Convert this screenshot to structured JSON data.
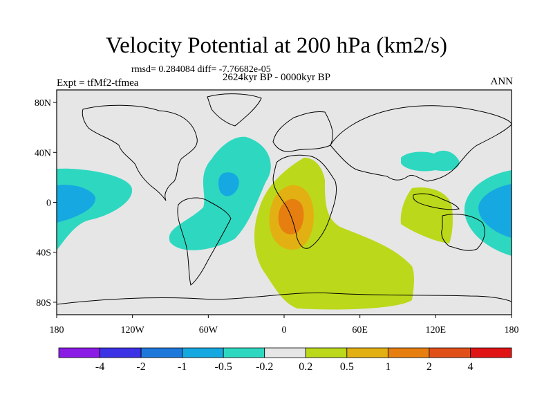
{
  "title": "Velocity Potential at 200 hPa (km2/s)",
  "stats_line": "rmsd= 0.284084  diff= -7.76682e-05",
  "experiment": "Expt = tfMf2-tfmea",
  "period": "2624kyr BP - 0000kyr BP",
  "season": "ANN",
  "lat_ticks": [
    "80N",
    "40N",
    "0",
    "40S",
    "80S"
  ],
  "lon_ticks": [
    "180",
    "120W",
    "60W",
    "0",
    "60E",
    "120E",
    "180"
  ],
  "colorbar": {
    "labels": [
      "-4",
      "-2",
      "-1",
      "-0.5",
      "-0.2",
      "0.2",
      "0.5",
      "1",
      "2",
      "4"
    ],
    "colors": [
      "#8a1ce6",
      "#3c32e6",
      "#1e78dc",
      "#16a8e0",
      "#2ed8c0",
      "#e6e6e6",
      "#bcd81a",
      "#e2b012",
      "#e67e10",
      "#e05018",
      "#e01414"
    ]
  },
  "map_colors": {
    "background": "#e6e6e6",
    "neg_weak": "#2ed8c0",
    "neg_mod": "#16a8e0",
    "pos_weak": "#bcd81a",
    "pos_mod": "#e2b012",
    "pos_strong": "#e67e10"
  }
}
